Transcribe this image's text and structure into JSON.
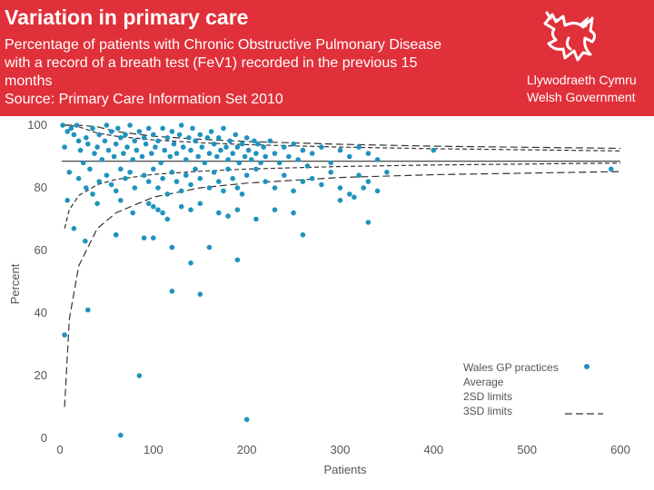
{
  "slide": {
    "title": "Variation in primary care",
    "subtitle_lines": [
      "Percentage of patients with Chronic Obstructive Pulmonary Disease",
      "with a record of a breath test (FeV1) recorded in the previous 15",
      "months",
      "Source: Primary Care Information Set 2010"
    ]
  },
  "logo": {
    "line1": "Llywodraeth Cymru",
    "line2": "Welsh Government",
    "icon": "welsh-dragon-icon"
  },
  "colors": {
    "banner": "#e0303a",
    "points": "#1f93be",
    "lines": "#333333",
    "text": "#555555"
  },
  "chart_data": {
    "type": "scatter",
    "title": "",
    "xlabel": "Patients",
    "ylabel": "Percent",
    "xlim": [
      0,
      600
    ],
    "ylim": [
      0,
      100
    ],
    "x_ticks": [
      0,
      100,
      200,
      300,
      400,
      500,
      600
    ],
    "y_ticks": [
      0,
      20,
      40,
      60,
      80,
      100
    ],
    "x_tick_labels": [
      "0",
      "100",
      "200",
      "300",
      "400",
      "500",
      "600"
    ],
    "y_tick_labels": [
      "0",
      "20",
      "40",
      "60",
      "80",
      "100"
    ],
    "average": 88.5,
    "legend": [
      {
        "label": "Wales GP practices",
        "kind": "point"
      },
      {
        "label": "Average",
        "kind": "none"
      },
      {
        "label": "2SD limits",
        "kind": "none"
      },
      {
        "label": "3SD limits",
        "kind": "dash"
      }
    ],
    "series": [
      {
        "name": "Wales GP practices",
        "points": [
          [
            3,
            100
          ],
          [
            8,
            98
          ],
          [
            12,
            99
          ],
          [
            15,
            97
          ],
          [
            18,
            100
          ],
          [
            20,
            95
          ],
          [
            22,
            92
          ],
          [
            25,
            88
          ],
          [
            28,
            96
          ],
          [
            30,
            94
          ],
          [
            32,
            86
          ],
          [
            35,
            99
          ],
          [
            37,
            91
          ],
          [
            40,
            93
          ],
          [
            42,
            97
          ],
          [
            45,
            89
          ],
          [
            48,
            95
          ],
          [
            50,
            100
          ],
          [
            52,
            92
          ],
          [
            55,
            98
          ],
          [
            58,
            90
          ],
          [
            60,
            94
          ],
          [
            62,
            99
          ],
          [
            65,
            96
          ],
          [
            68,
            91
          ],
          [
            70,
            97
          ],
          [
            72,
            93
          ],
          [
            75,
            100
          ],
          [
            78,
            89
          ],
          [
            80,
            95
          ],
          [
            82,
            92
          ],
          [
            85,
            98
          ],
          [
            88,
            90
          ],
          [
            90,
            96
          ],
          [
            92,
            94
          ],
          [
            95,
            99
          ],
          [
            98,
            91
          ],
          [
            100,
            97
          ],
          [
            102,
            93
          ],
          [
            105,
            95
          ],
          [
            108,
            88
          ],
          [
            110,
            99
          ],
          [
            112,
            92
          ],
          [
            115,
            96
          ],
          [
            118,
            90
          ],
          [
            120,
            98
          ],
          [
            122,
            94
          ],
          [
            125,
            91
          ],
          [
            128,
            97
          ],
          [
            130,
            100
          ],
          [
            132,
            93
          ],
          [
            135,
            89
          ],
          [
            138,
            96
          ],
          [
            140,
            92
          ],
          [
            142,
            99
          ],
          [
            145,
            95
          ],
          [
            148,
            90
          ],
          [
            150,
            97
          ],
          [
            152,
            93
          ],
          [
            155,
            88
          ],
          [
            158,
            96
          ],
          [
            160,
            91
          ],
          [
            162,
            98
          ],
          [
            165,
            94
          ],
          [
            168,
            90
          ],
          [
            170,
            96
          ],
          [
            172,
            92
          ],
          [
            175,
            99
          ],
          [
            178,
            93
          ],
          [
            180,
            89
          ],
          [
            182,
            95
          ],
          [
            185,
            91
          ],
          [
            188,
            97
          ],
          [
            190,
            93
          ],
          [
            192,
            88
          ],
          [
            195,
            94
          ],
          [
            198,
            90
          ],
          [
            200,
            96
          ],
          [
            202,
            92
          ],
          [
            205,
            89
          ],
          [
            208,
            95
          ],
          [
            210,
            91
          ],
          [
            212,
            94
          ],
          [
            215,
            88
          ],
          [
            218,
            93
          ],
          [
            220,
            90
          ],
          [
            225,
            95
          ],
          [
            230,
            91
          ],
          [
            235,
            88
          ],
          [
            240,
            93
          ],
          [
            245,
            90
          ],
          [
            250,
            94
          ],
          [
            255,
            89
          ],
          [
            260,
            92
          ],
          [
            265,
            87
          ],
          [
            270,
            91
          ],
          [
            280,
            93
          ],
          [
            290,
            88
          ],
          [
            300,
            92
          ],
          [
            310,
            90
          ],
          [
            320,
            93
          ],
          [
            330,
            91
          ],
          [
            340,
            89
          ],
          [
            400,
            92
          ],
          [
            590,
            86
          ],
          [
            5,
            93
          ],
          [
            10,
            85
          ],
          [
            20,
            83
          ],
          [
            28,
            80
          ],
          [
            35,
            78
          ],
          [
            42,
            82
          ],
          [
            50,
            84
          ],
          [
            55,
            81
          ],
          [
            60,
            79
          ],
          [
            65,
            86
          ],
          [
            70,
            83
          ],
          [
            75,
            85
          ],
          [
            80,
            80
          ],
          [
            90,
            84
          ],
          [
            95,
            82
          ],
          [
            100,
            86
          ],
          [
            105,
            80
          ],
          [
            110,
            83
          ],
          [
            115,
            78
          ],
          [
            120,
            85
          ],
          [
            125,
            82
          ],
          [
            130,
            79
          ],
          [
            135,
            84
          ],
          [
            140,
            81
          ],
          [
            145,
            86
          ],
          [
            150,
            83
          ],
          [
            160,
            80
          ],
          [
            165,
            85
          ],
          [
            170,
            82
          ],
          [
            175,
            79
          ],
          [
            180,
            86
          ],
          [
            185,
            83
          ],
          [
            190,
            80
          ],
          [
            195,
            78
          ],
          [
            200,
            84
          ],
          [
            210,
            86
          ],
          [
            220,
            82
          ],
          [
            230,
            80
          ],
          [
            240,
            84
          ],
          [
            250,
            79
          ],
          [
            260,
            82
          ],
          [
            270,
            83
          ],
          [
            280,
            81
          ],
          [
            290,
            85
          ],
          [
            300,
            80
          ],
          [
            310,
            78
          ],
          [
            320,
            84
          ],
          [
            330,
            82
          ],
          [
            340,
            79
          ],
          [
            350,
            85
          ],
          [
            315,
            77
          ],
          [
            325,
            80
          ],
          [
            8,
            76
          ],
          [
            15,
            67
          ],
          [
            27,
            63
          ],
          [
            40,
            75
          ],
          [
            60,
            65
          ],
          [
            65,
            76
          ],
          [
            78,
            72
          ],
          [
            90,
            64
          ],
          [
            95,
            75
          ],
          [
            100,
            74
          ],
          [
            105,
            73
          ],
          [
            110,
            72
          ],
          [
            115,
            70
          ],
          [
            120,
            61
          ],
          [
            130,
            74
          ],
          [
            140,
            73
          ],
          [
            150,
            75
          ],
          [
            160,
            61
          ],
          [
            170,
            72
          ],
          [
            180,
            71
          ],
          [
            190,
            73
          ],
          [
            210,
            70
          ],
          [
            230,
            73
          ],
          [
            250,
            72
          ],
          [
            260,
            65
          ],
          [
            300,
            76
          ],
          [
            330,
            69
          ],
          [
            5,
            33
          ],
          [
            30,
            41
          ],
          [
            60,
            65
          ],
          [
            85,
            20
          ],
          [
            100,
            64
          ],
          [
            120,
            47
          ],
          [
            140,
            56
          ],
          [
            150,
            46
          ],
          [
            190,
            57
          ],
          [
            200,
            6
          ],
          [
            65,
            1
          ]
        ]
      }
    ],
    "limits": {
      "2sd_upper": [
        [
          5,
          100
        ],
        [
          10,
          100
        ],
        [
          20,
          99.5
        ],
        [
          40,
          97.5
        ],
        [
          60,
          96.5
        ],
        [
          100,
          95.3
        ],
        [
          150,
          94.4
        ],
        [
          200,
          93.8
        ],
        [
          300,
          93
        ],
        [
          400,
          92.5
        ],
        [
          600,
          91.8
        ]
      ],
      "2sd_lower": [
        [
          5,
          67
        ],
        [
          10,
          73
        ],
        [
          20,
          77.5
        ],
        [
          40,
          81
        ],
        [
          60,
          82.7
        ],
        [
          100,
          84.3
        ],
        [
          150,
          85.3
        ],
        [
          200,
          86
        ],
        [
          300,
          86.8
        ],
        [
          400,
          87.3
        ],
        [
          600,
          87.9
        ]
      ],
      "3sd_upper": [
        [
          5,
          100
        ],
        [
          10,
          100
        ],
        [
          20,
          100
        ],
        [
          40,
          99.5
        ],
        [
          60,
          98
        ],
        [
          100,
          96.5
        ],
        [
          150,
          95.5
        ],
        [
          200,
          94.8
        ],
        [
          300,
          93.9
        ],
        [
          400,
          93.3
        ],
        [
          600,
          92.6
        ]
      ],
      "3sd_lower": [
        [
          5,
          10
        ],
        [
          10,
          38
        ],
        [
          20,
          55
        ],
        [
          40,
          67
        ],
        [
          60,
          72
        ],
        [
          100,
          77
        ],
        [
          150,
          80
        ],
        [
          200,
          81.5
        ],
        [
          300,
          83.3
        ],
        [
          400,
          84.2
        ],
        [
          600,
          85.2
        ]
      ]
    }
  }
}
